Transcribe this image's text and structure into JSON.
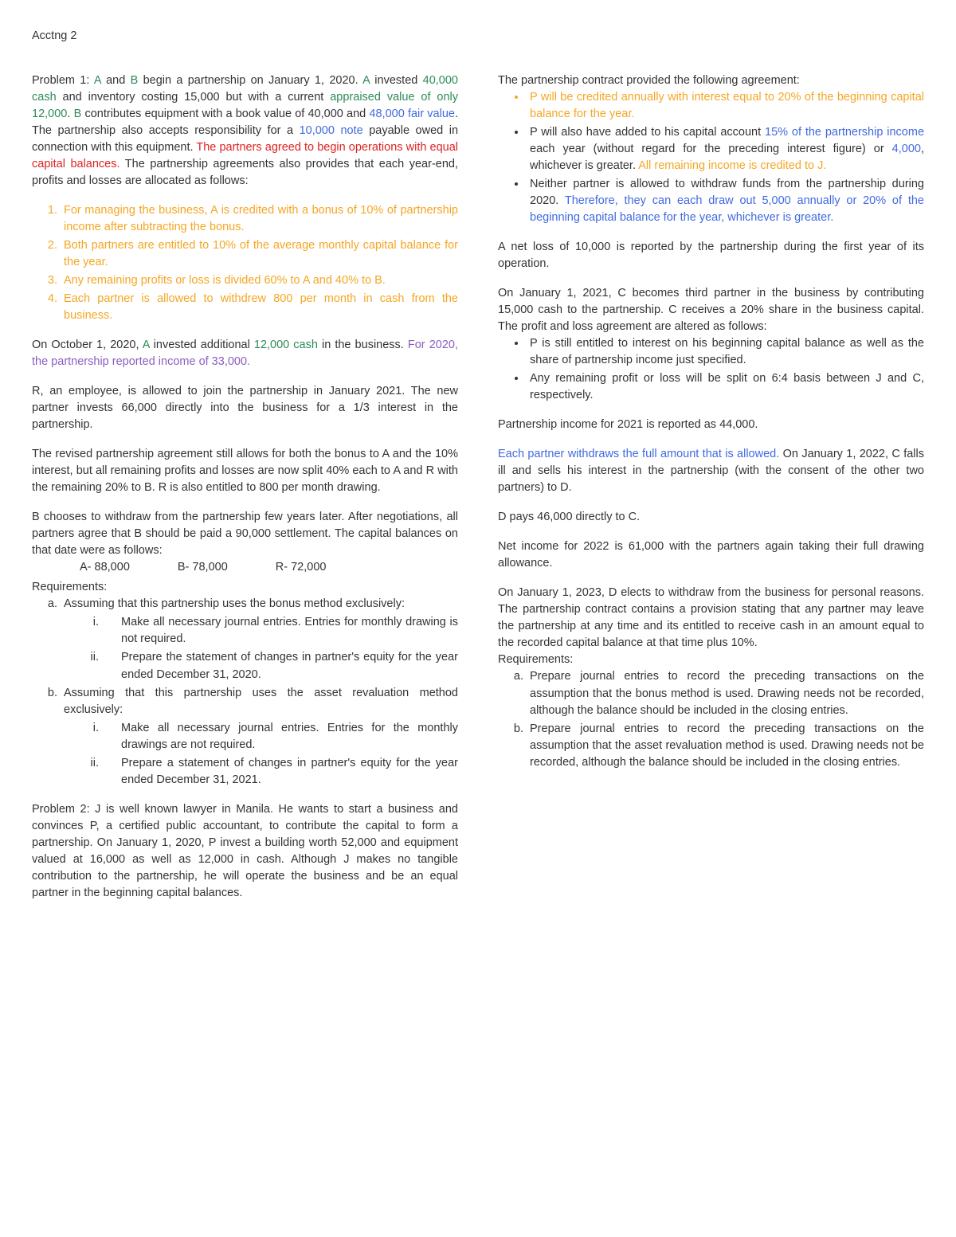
{
  "colors": {
    "green": "#2e8b57",
    "blue": "#4169e1",
    "red": "#d22",
    "orange": "#f5a623",
    "purple": "#8b5fbf",
    "black": "#333"
  },
  "header": "Acctng 2",
  "col1": {
    "p1": {
      "t1": "Problem 1: ",
      "t2": "A",
      "t3": " and ",
      "t4": "B",
      "t5": " begin a partnership on January 1, 2020. ",
      "t6": "A",
      "t7": " invested ",
      "t8": "40,000 cash",
      "t9": " and inventory costing 15,000 but with a current ",
      "t10": "appraised value of only 12,000",
      "t11": ". ",
      "t12": "B",
      "t13": " contributes equipment with a book value of 40,000 and ",
      "t14": "48,000 fair value",
      "t15": ". The partnership also accepts responsibility for a ",
      "t16": "10,000 note",
      "t17": " payable owed in connection with this equipment. ",
      "t18": "The partners agreed to begin operations with equal capital balances.",
      "t19": " The partnership agreements also provides that each year-end, profits and losses are allocated as follows:"
    },
    "list1": {
      "i1": "For managing the business, A is credited with a bonus of 10% of partnership income after subtracting the bonus.",
      "i2": "Both partners are entitled to 10% of the average monthly capital balance for the year.",
      "i3": "Any remaining profits or loss is divided 60% to A and 40% to B.",
      "i4": "Each partner is allowed to withdrew 800 per month in cash from the business."
    },
    "p2": {
      "t1": "On October 1, 2020, ",
      "t2": "A",
      "t3": " invested additional ",
      "t4": "12,000 cash",
      "t5": " in the business. ",
      "t6": "For 2020, the partnership reported income of 33,000."
    },
    "p3": "R, an employee, is allowed to join the partnership in January 2021. The new partner invests 66,000 directly into the business for a 1/3 interest in the partnership.",
    "p4": "The revised partnership agreement still allows for both the bonus to A and the 10% interest, but all remaining profits and losses are now split 40% each to A and R with the remaining 20% to B. R is also entitled to 800 per month drawing.",
    "p5": "B chooses to withdraw from the partnership few years later. After negotiations, all partners agree that B should be paid a 90,000 settlement. The capital balances on that date were as follows:",
    "bal": {
      "a": "A-  88,000",
      "b": "B-  78,000",
      "r": "R-  72,000"
    },
    "req_label": "Requirements:",
    "req": {
      "a": {
        "main": "Assuming that this partnership uses the bonus method exclusively:",
        "i": "Make all necessary journal entries. Entries for monthly drawing is not required.",
        "ii": "Prepare the statement of changes in partner's equity for the year ended December 31, 2020."
      },
      "b": {
        "main": "Assuming that this partnership uses the asset revaluation method exclusively:",
        "i": "Make all necessary journal entries. Entries for the monthly drawings are not required.",
        "ii": "Prepare a statement of changes in partner's equity for the year ended December 31, 2021."
      }
    },
    "p6": "Problem 2: J is well known lawyer in Manila. He wants to start a business and convinces P, a certified public accountant, to contribute the capital to form a partnership. On January 1, 2020, P invest a building worth 52,000 and equipment valued at 16,000 as well as 12,000 in cash. Although J makes no tangible contribution to the partnership, he will operate the business and be an equal partner in the beginning capital balances."
  },
  "col2": {
    "p1": "The partnership contract provided the following agreement:",
    "list1": {
      "i1": "P will be credited annually with interest equal to 20% of the beginning capital balance for the year.",
      "i2": {
        "t1": "P will also have added to his capital account ",
        "t2": "15% of the partnership income",
        "t3": " each year (without regard for the preceding interest figure) or ",
        "t4": "4,000",
        "t5": ", whichever is greater. ",
        "t6": "All remaining income is credited to J."
      },
      "i3": {
        "t1": "Neither partner is allowed to withdraw funds from the partnership during 2020. ",
        "t2": "Therefore, they can each draw out 5,000 annually or 20% of the beginning capital balance for the year, whichever is greater."
      }
    },
    "p2": "A net loss of 10,000 is reported by the partnership during the first year of its operation.",
    "p3": "On January 1, 2021, C becomes third partner in the business by contributing 15,000 cash to the partnership. C receives a 20% share in the business capital. The profit and loss agreement are altered as follows:",
    "list2": {
      "i1": "P is still entitled to interest on his beginning capital balance as well as the share of partnership income just specified.",
      "i2": "Any remaining profit or loss will be split on 6:4 basis between J and C, respectively."
    },
    "p4": "Partnership income for 2021 is reported as 44,000.",
    "p5": {
      "t1": "Each partner withdraws the full amount that is allowed.",
      "t2": " On January 1, 2022, C falls ill and sells his interest in the partnership (with the consent of the other two partners) to D."
    },
    "p6": "D pays 46,000 directly to C.",
    "p7": "Net income for 2022 is 61,000 with the partners again taking their full drawing allowance.",
    "p8": "On January 1, 2023, D elects to withdraw from the business for personal reasons. The partnership contract contains a provision stating that any partner may leave the partnership at any time and its entitled to receive cash in an amount equal to the recorded capital balance at that time plus 10%.",
    "req_label": "Requirements:",
    "req": {
      "a": "Prepare journal entries to record the preceding transactions on the assumption that the bonus method is used. Drawing needs not be recorded, although the balance should be included in the closing entries.",
      "b": "Prepare journal entries to record the preceding transactions on the assumption that the asset revaluation method is used. Drawing needs not be recorded, although the balance should be included in the closing entries."
    }
  }
}
